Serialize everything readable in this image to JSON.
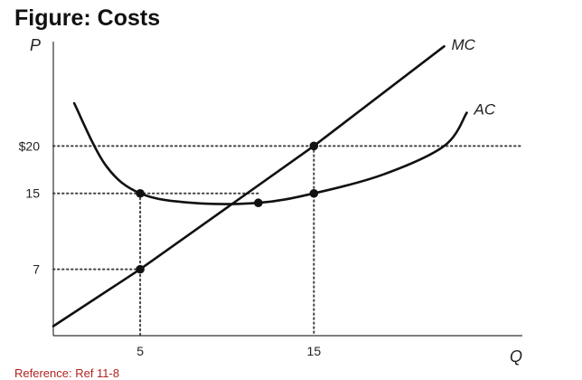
{
  "title": "Figure: Costs",
  "reference": "Reference: Ref 11-8",
  "chart_data": {
    "type": "line",
    "xlabel": "Q",
    "ylabel": "P",
    "xlim": [
      0,
      27
    ],
    "ylim": [
      0,
      31
    ],
    "x_ticks": [
      {
        "value": 5,
        "label": "5"
      },
      {
        "value": 15,
        "label": "15"
      }
    ],
    "y_ticks": [
      {
        "value": 20,
        "label": "$20"
      },
      {
        "value": 15,
        "label": "15"
      },
      {
        "value": 7,
        "label": "7"
      }
    ],
    "grid": false,
    "series": [
      {
        "name": "MC",
        "x": [
          0,
          5,
          15,
          22.5
        ],
        "y": [
          1,
          7,
          20,
          30.5
        ]
      },
      {
        "name": "AC",
        "x": [
          1.2,
          3,
          5,
          8,
          11.8,
          15,
          19,
          22.5,
          23.8
        ],
        "y": [
          24.5,
          18,
          15,
          14,
          14,
          15,
          17,
          20,
          23.5
        ]
      }
    ],
    "points": [
      {
        "x": 5,
        "y": 15
      },
      {
        "x": 5,
        "y": 7
      },
      {
        "x": 11.8,
        "y": 14
      },
      {
        "x": 15,
        "y": 20
      },
      {
        "x": 15,
        "y": 15
      }
    ],
    "reference_lines": [
      {
        "orientation": "horizontal",
        "value": 20,
        "style": "dotted"
      },
      {
        "orientation": "horizontal",
        "value": 15,
        "style": "dotted"
      },
      {
        "orientation": "horizontal",
        "value": 7,
        "style": "dotted"
      },
      {
        "orientation": "vertical",
        "value": 5,
        "style": "dotted"
      },
      {
        "orientation": "vertical",
        "value": 15,
        "style": "dotted"
      }
    ],
    "colors": {
      "line": "#111111",
      "dots": "#111111",
      "reference": "#444444"
    }
  }
}
